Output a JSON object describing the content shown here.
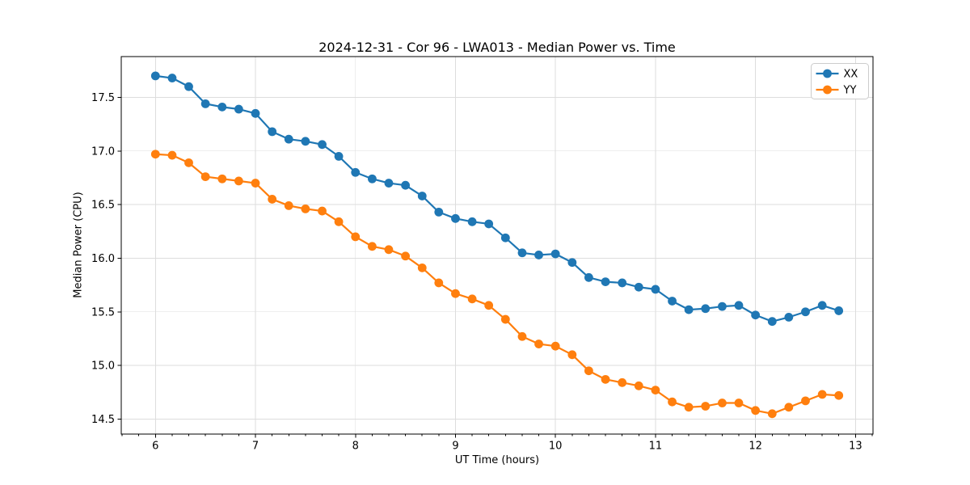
{
  "figure": {
    "background": "#ffffff",
    "grid_color": "#dddddd",
    "spine_color": "#000000",
    "legend_border_color": "#cccccc"
  },
  "chart_data": {
    "type": "line",
    "title": "2024-12-31 - Cor 96 - LWA013 - Median Power vs. Time",
    "xlabel": "UT Time (hours)",
    "ylabel": "Median Power (CPU)",
    "xlim": [
      5.658,
      13.175
    ],
    "ylim": [
      14.36,
      17.88
    ],
    "x_ticks": [
      6,
      7,
      8,
      9,
      10,
      11,
      12,
      13
    ],
    "x_minor_tick_step_hours": 0.166667,
    "y_ticks": [
      14.5,
      15.0,
      15.5,
      16.0,
      16.5,
      17.0,
      17.5
    ],
    "grid": true,
    "legend_position": "upper right",
    "x": [
      6.0,
      6.167,
      6.333,
      6.5,
      6.667,
      6.833,
      7.0,
      7.167,
      7.333,
      7.5,
      7.667,
      7.833,
      8.0,
      8.167,
      8.333,
      8.5,
      8.667,
      8.833,
      9.0,
      9.167,
      9.333,
      9.5,
      9.667,
      9.833,
      10.0,
      10.167,
      10.333,
      10.5,
      10.667,
      10.833,
      11.0,
      11.167,
      11.333,
      11.5,
      11.667,
      11.833,
      12.0,
      12.167,
      12.333,
      12.5,
      12.667,
      12.833
    ],
    "series": [
      {
        "name": "XX",
        "color": "#1f77b4",
        "marker": "circle",
        "values": [
          17.7,
          17.68,
          17.6,
          17.44,
          17.41,
          17.39,
          17.35,
          17.18,
          17.11,
          17.09,
          17.06,
          16.95,
          16.8,
          16.74,
          16.7,
          16.68,
          16.58,
          16.43,
          16.37,
          16.34,
          16.32,
          16.19,
          16.05,
          16.03,
          16.04,
          15.96,
          15.82,
          15.78,
          15.77,
          15.73,
          15.71,
          15.6,
          15.52,
          15.53,
          15.55,
          15.56,
          15.47,
          15.41,
          15.45,
          15.5,
          15.56,
          15.51
        ]
      },
      {
        "name": "YY",
        "color": "#ff7f0e",
        "marker": "circle",
        "values": [
          16.97,
          16.96,
          16.89,
          16.76,
          16.74,
          16.72,
          16.7,
          16.55,
          16.49,
          16.46,
          16.44,
          16.34,
          16.2,
          16.11,
          16.08,
          16.02,
          15.91,
          15.77,
          15.67,
          15.62,
          15.56,
          15.43,
          15.27,
          15.2,
          15.18,
          15.1,
          14.95,
          14.87,
          14.84,
          14.81,
          14.77,
          14.66,
          14.61,
          14.62,
          14.65,
          14.65,
          14.58,
          14.55,
          14.61,
          14.67,
          14.73,
          14.72
        ]
      }
    ]
  },
  "legend": {
    "items": [
      "XX",
      "YY"
    ]
  }
}
